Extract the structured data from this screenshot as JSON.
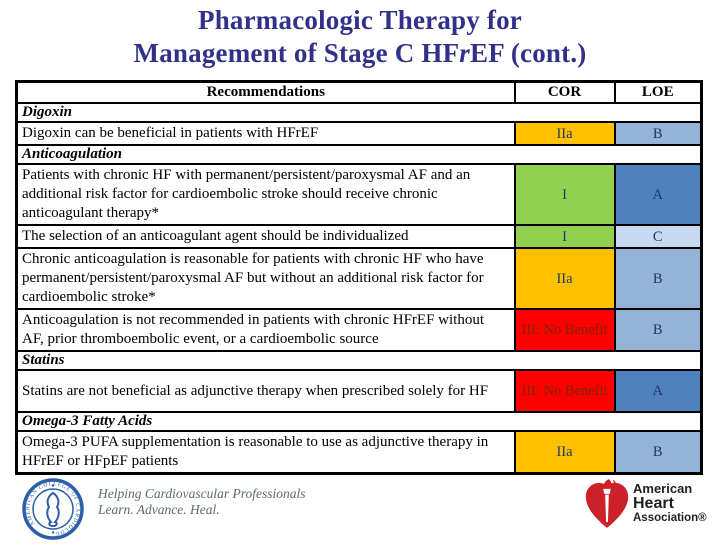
{
  "title": {
    "line1": "Pharmacologic Therapy for",
    "line2_pre": "Management of Stage C HF",
    "line2_italic": "r",
    "line2_post": "EF (cont.)"
  },
  "table": {
    "headers": [
      "Recommendations",
      "COR",
      "LOE"
    ],
    "rows": [
      {
        "type": "section",
        "text": "Digoxin"
      },
      {
        "type": "rec",
        "text": "Digoxin can be beneficial in patients with HFrEF",
        "cor": "IIa",
        "loe": "B",
        "cor_bg": "#FFC000",
        "loe_bg": "#95B3D7"
      },
      {
        "type": "section",
        "text": "Anticoagulation"
      },
      {
        "type": "rec",
        "text": "Patients with chronic HF with permanent/persistent/paroxysmal AF and an additional risk factor for cardioembolic stroke should receive chronic anticoagulant therapy*",
        "cor": "I",
        "loe": "A",
        "cor_bg": "#92D050",
        "loe_bg": "#4F81BD"
      },
      {
        "type": "rec",
        "text": "The selection of an anticoagulant agent should be individualized",
        "cor": "I",
        "loe": "C",
        "cor_bg": "#92D050",
        "loe_bg": "#C6D9F1"
      },
      {
        "type": "rec",
        "text": "Chronic anticoagulation is reasonable for patients with chronic HF who have permanent/persistent/paroxysmal AF but without an additional risk factor for cardioembolic stroke*",
        "cor": "IIa",
        "loe": "B",
        "cor_bg": "#FFC000",
        "loe_bg": "#95B3D7"
      },
      {
        "type": "rec",
        "text": "Anticoagulation is not recommended in patients with chronic HFrEF without AF, prior thromboembolic event, or a cardioembolic source",
        "cor": "III: No Benefit",
        "loe": "B",
        "cor_bg": "#FF0000",
        "cor_text": "#7B2504",
        "loe_bg": "#95B3D7"
      },
      {
        "type": "section",
        "text": "Statins"
      },
      {
        "type": "rec",
        "text": "Statins are not beneficial as adjunctive therapy when prescribed solely for HF",
        "cor": "III: No Benefit",
        "loe": "A",
        "cor_bg": "#FF0000",
        "cor_text": "#7B2504",
        "loe_bg": "#4F81BD"
      },
      {
        "type": "section",
        "text": "Omega-3 Fatty Acids"
      },
      {
        "type": "rec",
        "text": "Omega-3 PUFA supplementation is reasonable to use as adjunctive therapy in HFrEF or HFpEF patients",
        "cor": "IIa",
        "loe": "B",
        "cor_bg": "#FFC000",
        "loe_bg": "#95B3D7"
      }
    ]
  },
  "footer": {
    "acc_seal_text": "AMERICAN COLLEGE OF CARDIOLOGY",
    "acc_tagline_line1": "Helping Cardiovascular Professionals",
    "acc_tagline_line2": "Learn. Advance. Heal.",
    "aha_line1": "American",
    "aha_line2": "Heart",
    "aha_line3": "Association®"
  },
  "colors": {
    "title_text": "#313189",
    "cor_iia_bg": "#FFC000",
    "cor_i_bg": "#92D050",
    "cor_iii_bg": "#FF0000",
    "cor_iii_text": "#7B2504",
    "loe_a_bg": "#4F81BD",
    "loe_b_bg": "#95B3D7",
    "loe_c_bg": "#C6D9F1",
    "cell_letter_text": "#203864",
    "table_border": "#000000",
    "acc_blue": "#2B5EA7",
    "aha_red": "#CC2128",
    "tagline_gray": "#5E6A71"
  }
}
